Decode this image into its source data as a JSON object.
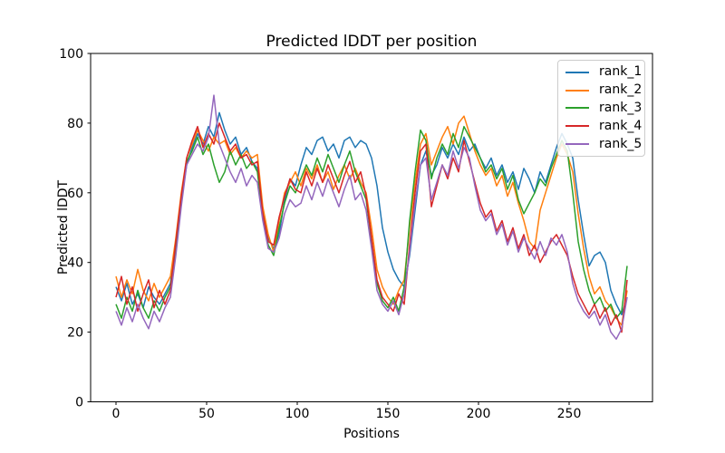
{
  "chart_data": {
    "type": "line",
    "title": "Predicted lDDT per position",
    "xlabel": "Positions",
    "ylabel": "Predicted lDDT",
    "xlim": [
      -14,
      296
    ],
    "ylim": [
      0,
      100
    ],
    "xticks": [
      0,
      50,
      100,
      150,
      200,
      250
    ],
    "yticks": [
      0,
      20,
      40,
      60,
      80,
      100
    ],
    "grid": false,
    "legend_position": "upper right",
    "x": [
      0,
      3,
      6,
      9,
      12,
      15,
      18,
      21,
      24,
      27,
      30,
      33,
      36,
      39,
      42,
      45,
      48,
      51,
      54,
      57,
      60,
      63,
      66,
      69,
      72,
      75,
      78,
      81,
      84,
      87,
      90,
      93,
      96,
      99,
      102,
      105,
      108,
      111,
      114,
      117,
      120,
      123,
      126,
      129,
      132,
      135,
      138,
      141,
      144,
      147,
      150,
      153,
      156,
      159,
      162,
      165,
      168,
      171,
      174,
      177,
      180,
      183,
      186,
      189,
      192,
      195,
      198,
      201,
      204,
      207,
      210,
      213,
      216,
      219,
      222,
      225,
      228,
      231,
      234,
      237,
      240,
      243,
      246,
      249,
      252,
      255,
      258,
      261,
      264,
      267,
      270,
      273,
      276,
      279,
      282
    ],
    "series": [
      {
        "name": "rank_1",
        "color": "#1f77b4",
        "values": [
          33,
          29,
          34,
          28,
          31,
          27,
          33,
          30,
          28,
          31,
          34,
          45,
          58,
          68,
          73,
          77,
          74,
          79,
          76,
          83,
          78,
          74,
          76,
          71,
          73,
          69,
          67,
          55,
          47,
          44,
          48,
          58,
          64,
          62,
          68,
          73,
          71,
          75,
          76,
          72,
          74,
          70,
          75,
          76,
          73,
          75,
          74,
          70,
          62,
          50,
          43,
          38,
          35,
          33,
          42,
          55,
          68,
          72,
          65,
          68,
          73,
          70,
          74,
          71,
          76,
          72,
          74,
          70,
          67,
          70,
          65,
          68,
          63,
          66,
          61,
          67,
          64,
          60,
          66,
          63,
          68,
          73,
          77,
          74,
          70,
          58,
          48,
          39,
          42,
          43,
          40,
          32,
          28,
          25,
          30
        ]
      },
      {
        "name": "rank_2",
        "color": "#ff7f0e",
        "values": [
          36,
          30,
          35,
          31,
          38,
          32,
          29,
          34,
          30,
          33,
          36,
          47,
          60,
          70,
          74,
          78,
          75,
          72,
          76,
          74,
          75,
          71,
          73,
          70,
          72,
          70,
          71,
          56,
          48,
          43,
          52,
          60,
          63,
          66,
          62,
          67,
          64,
          68,
          63,
          66,
          61,
          65,
          68,
          64,
          67,
          63,
          60,
          50,
          38,
          33,
          30,
          28,
          32,
          35,
          50,
          63,
          74,
          77,
          68,
          72,
          76,
          79,
          74,
          80,
          82,
          77,
          72,
          68,
          65,
          67,
          62,
          65,
          59,
          63,
          57,
          52,
          46,
          44,
          55,
          60,
          65,
          70,
          74,
          71,
          66,
          54,
          44,
          36,
          31,
          33,
          29,
          27,
          24,
          22,
          32
        ]
      },
      {
        "name": "rank_3",
        "color": "#2ca02c",
        "values": [
          28,
          24,
          30,
          26,
          32,
          27,
          24,
          29,
          26,
          30,
          33,
          44,
          57,
          69,
          72,
          76,
          71,
          74,
          68,
          63,
          66,
          72,
          68,
          71,
          67,
          69,
          66,
          53,
          45,
          42,
          50,
          57,
          62,
          60,
          64,
          68,
          65,
          70,
          66,
          71,
          67,
          63,
          68,
          72,
          66,
          62,
          58,
          46,
          34,
          29,
          27,
          30,
          26,
          33,
          52,
          66,
          78,
          75,
          64,
          70,
          74,
          71,
          77,
          73,
          79,
          76,
          73,
          70,
          66,
          68,
          64,
          67,
          61,
          65,
          58,
          54,
          57,
          60,
          64,
          62,
          67,
          71,
          75,
          72,
          60,
          46,
          38,
          32,
          28,
          30,
          26,
          28,
          24,
          26,
          39
        ]
      },
      {
        "name": "rank_4",
        "color": "#d62728",
        "values": [
          30,
          36,
          28,
          33,
          26,
          31,
          35,
          27,
          32,
          28,
          32,
          46,
          59,
          70,
          75,
          79,
          73,
          77,
          74,
          80,
          76,
          72,
          74,
          70,
          71,
          68,
          69,
          54,
          46,
          45,
          53,
          59,
          64,
          61,
          60,
          66,
          62,
          67,
          63,
          68,
          64,
          60,
          65,
          69,
          63,
          66,
          59,
          47,
          35,
          30,
          28,
          26,
          31,
          28,
          45,
          60,
          72,
          74,
          56,
          62,
          68,
          64,
          70,
          66,
          75,
          69,
          63,
          57,
          53,
          55,
          49,
          52,
          46,
          50,
          44,
          48,
          42,
          45,
          40,
          43,
          46,
          48,
          45,
          42,
          36,
          31,
          28,
          25,
          28,
          24,
          27,
          22,
          25,
          20,
          35
        ]
      },
      {
        "name": "rank_5",
        "color": "#9467bd",
        "values": [
          26,
          22,
          27,
          23,
          28,
          24,
          21,
          26,
          23,
          27,
          30,
          42,
          56,
          68,
          71,
          74,
          72,
          76,
          88,
          74,
          70,
          66,
          63,
          67,
          62,
          65,
          63,
          52,
          44,
          43,
          47,
          54,
          58,
          56,
          57,
          62,
          58,
          63,
          59,
          64,
          60,
          56,
          61,
          65,
          58,
          60,
          55,
          44,
          32,
          28,
          26,
          29,
          25,
          31,
          43,
          57,
          68,
          70,
          58,
          63,
          68,
          65,
          72,
          67,
          73,
          70,
          62,
          55,
          52,
          54,
          48,
          51,
          45,
          49,
          43,
          47,
          44,
          41,
          46,
          42,
          47,
          45,
          48,
          43,
          34,
          29,
          26,
          24,
          26,
          22,
          25,
          20,
          18,
          21,
          30
        ]
      }
    ]
  }
}
